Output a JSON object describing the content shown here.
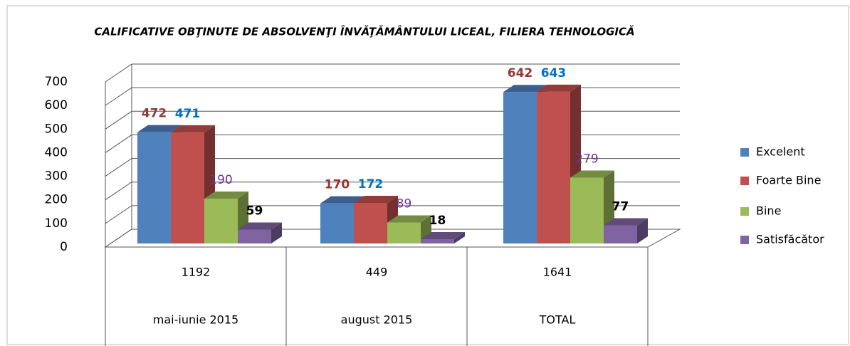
{
  "chart_data": {
    "type": "bar3d",
    "title": "CALIFICATIVE OBŢINUTE DE ABSOLVENŢI ÎNVĂŢĂMÂNTULUI LICEAL, FILIERA TEHNOLOGICĂ",
    "categories": [
      "mai-iunie 2015",
      "august 2015",
      "TOTAL"
    ],
    "category_totals": [
      1192,
      449,
      1641
    ],
    "series": [
      {
        "name": "Excelent",
        "color": "#4f81bd",
        "label_color": "#953735",
        "label_weight": "bold",
        "values": [
          472,
          170,
          642
        ]
      },
      {
        "name": "Foarte Bine",
        "color": "#c0504d",
        "label_color": "#0070c0",
        "label_weight": "bold",
        "values": [
          471,
          172,
          643
        ]
      },
      {
        "name": "Bine",
        "color": "#9bbb59",
        "label_color": "#7030a0",
        "label_weight": "normal",
        "values": [
          190,
          89,
          279
        ]
      },
      {
        "name": "Satisfăcător",
        "color": "#8064a2",
        "label_color": "#000000",
        "label_weight": "bold",
        "values": [
          59,
          18,
          77
        ]
      }
    ],
    "ylim": [
      0,
      700
    ],
    "yticks": [
      0,
      100,
      200,
      300,
      400,
      500,
      600,
      700
    ],
    "grid": true,
    "legend": "right"
  }
}
